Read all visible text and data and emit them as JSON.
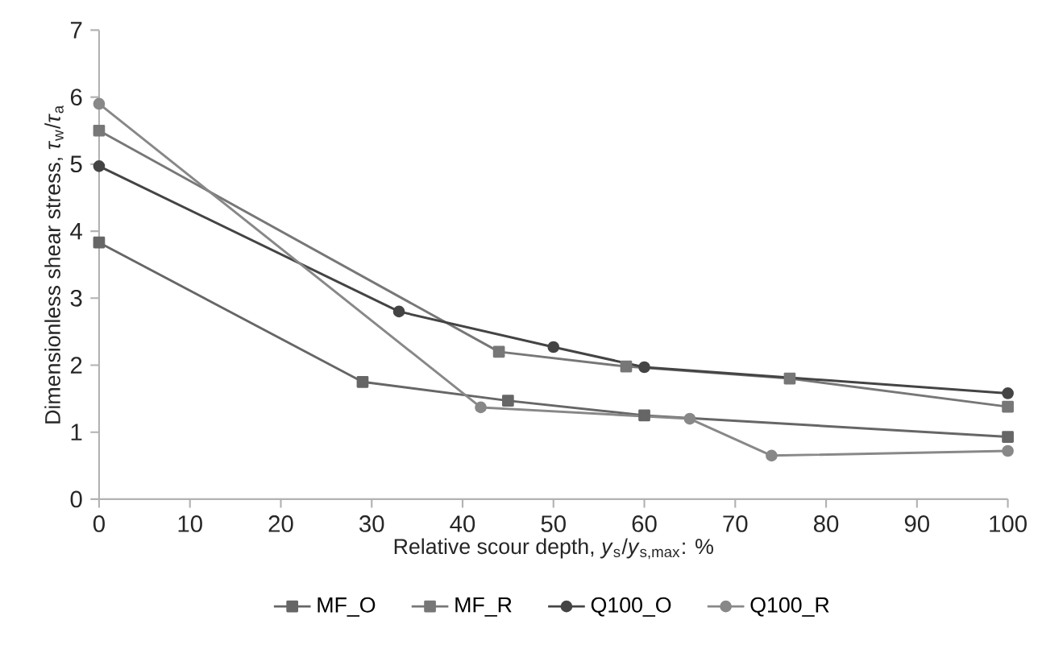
{
  "chart_data": {
    "type": "line",
    "xlabel": "Relative scour depth, *y*$_{s}$/*y*$_{s,max}$: %",
    "ylabel": "Dimensionless shear stress, *τ*$_{w}$/*τ*$_{a}$",
    "xlim": [
      0,
      100
    ],
    "xticks": [
      0,
      10,
      20,
      30,
      40,
      50,
      60,
      70,
      80,
      90,
      100
    ],
    "ylim": [
      0,
      7
    ],
    "yticks": [
      0,
      1,
      2,
      3,
      4,
      5,
      6,
      7
    ],
    "legend": "bottom",
    "grid": false,
    "series": [
      {
        "name": "MF_O",
        "color": "#666666",
        "marker": "square",
        "x": [
          0,
          29,
          45,
          60,
          100
        ],
        "values": [
          3.83,
          1.75,
          1.47,
          1.25,
          0.93
        ]
      },
      {
        "name": "MF_R",
        "color": "#777777",
        "marker": "square",
        "x": [
          0,
          44,
          58,
          76,
          100
        ],
        "values": [
          5.5,
          2.2,
          1.98,
          1.8,
          1.38
        ]
      },
      {
        "name": "Q100_O",
        "color": "#444444",
        "marker": "circle",
        "x": [
          0,
          33,
          50,
          60,
          100
        ],
        "values": [
          4.97,
          2.8,
          2.27,
          1.97,
          1.58
        ]
      },
      {
        "name": "Q100_R",
        "color": "#888888",
        "marker": "circle",
        "x": [
          0,
          42,
          65,
          74,
          100
        ],
        "values": [
          5.9,
          1.37,
          1.2,
          0.65,
          0.72
        ]
      }
    ]
  }
}
